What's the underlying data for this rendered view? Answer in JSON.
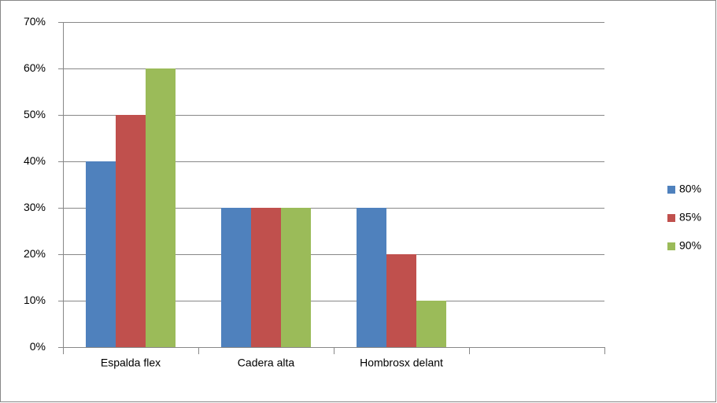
{
  "chart_data": {
    "type": "bar",
    "categories": [
      "Espalda flex",
      "Cadera alta",
      "Hombrosx delant",
      null
    ],
    "series": [
      {
        "name": "80%",
        "color": "#4f81bd",
        "values": [
          40,
          30,
          30,
          null
        ]
      },
      {
        "name": "85%",
        "color": "#c0504d",
        "values": [
          50,
          30,
          20,
          null
        ]
      },
      {
        "name": "90%",
        "color": "#9bbb59",
        "values": [
          60,
          30,
          10,
          null
        ]
      }
    ],
    "ylim": [
      0,
      70
    ],
    "yticks": [
      {
        "value": 0,
        "label": "0%"
      },
      {
        "value": 10,
        "label": "10%"
      },
      {
        "value": 20,
        "label": "20%"
      },
      {
        "value": 30,
        "label": "30%"
      },
      {
        "value": 40,
        "label": "40%"
      },
      {
        "value": 50,
        "label": "50%"
      },
      {
        "value": 60,
        "label": "60%"
      },
      {
        "value": 70,
        "label": "70%"
      }
    ],
    "grid": true,
    "legend": "right"
  }
}
